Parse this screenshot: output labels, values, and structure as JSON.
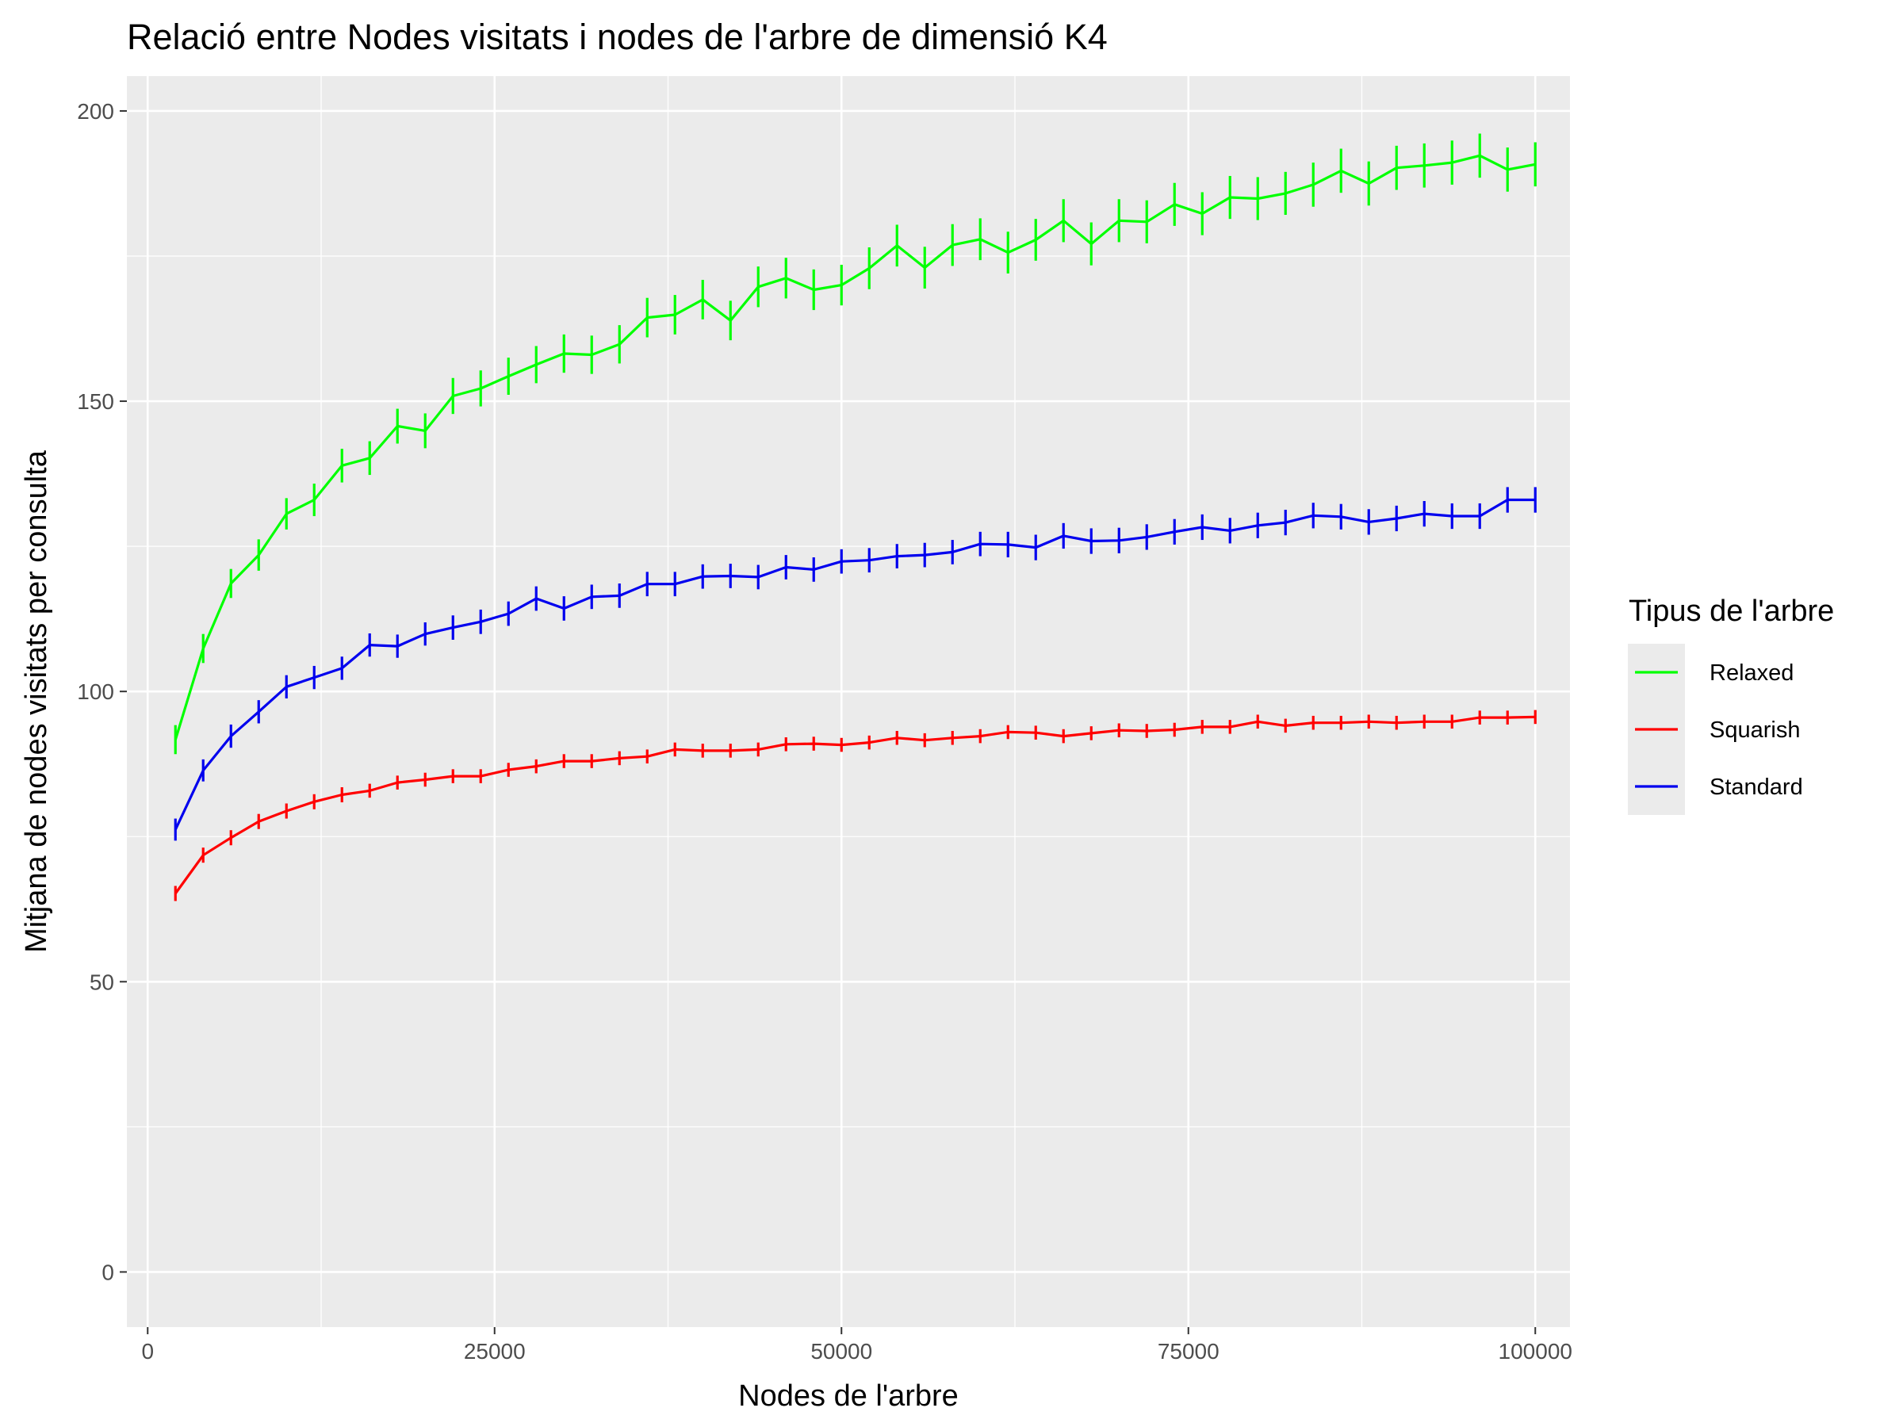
{
  "chart_data": {
    "type": "line",
    "title": "Relació entre Nodes visitats i nodes de l'arbre de dimensió K4",
    "xlabel": "Nodes de l'arbre",
    "ylabel": "Mitjana de nodes visitats per consulta",
    "xlim": [
      -1500,
      102500
    ],
    "ylim": [
      -9.5,
      206
    ],
    "x_ticks": [
      0,
      25000,
      50000,
      75000,
      100000
    ],
    "x_tick_labels": [
      "0",
      "25000",
      "50000",
      "75000",
      "100000"
    ],
    "y_ticks": [
      0,
      50,
      100,
      150,
      200
    ],
    "y_tick_labels": [
      "0",
      "50",
      "100",
      "150",
      "200"
    ],
    "grid": true,
    "legend": {
      "title": "Tipus de l'arbre",
      "position": "right"
    },
    "x": [
      2000,
      4000,
      6000,
      8000,
      10000,
      12000,
      14000,
      16000,
      18000,
      20000,
      22000,
      24000,
      26000,
      28000,
      30000,
      32000,
      34000,
      36000,
      38000,
      40000,
      42000,
      44000,
      46000,
      48000,
      50000,
      52000,
      54000,
      56000,
      58000,
      60000,
      62000,
      64000,
      66000,
      68000,
      70000,
      72000,
      74000,
      76000,
      78000,
      80000,
      82000,
      84000,
      86000,
      88000,
      90000,
      92000,
      94000,
      96000,
      98000,
      100000
    ],
    "series": [
      {
        "name": "Relaxed",
        "color": "#00ff00",
        "values": [
          91.7,
          107.4,
          118.6,
          123.5,
          130.6,
          133.0,
          138.9,
          140.2,
          145.7,
          144.9,
          150.9,
          152.2,
          154.3,
          156.3,
          158.2,
          158.0,
          159.8,
          164.4,
          164.9,
          167.5,
          163.9,
          169.7,
          171.2,
          169.2,
          170.0,
          172.9,
          176.8,
          173.0,
          176.9,
          177.9,
          175.6,
          177.8,
          181.1,
          177.1,
          181.1,
          180.9,
          183.9,
          182.3,
          185.1,
          184.9,
          185.8,
          187.3,
          189.7,
          187.5,
          190.2,
          190.6,
          191.1,
          192.3,
          189.9,
          190.8
        ],
        "errors": [
          2.5,
          2.5,
          2.5,
          2.7,
          2.7,
          2.8,
          2.9,
          2.9,
          3.0,
          3.0,
          3.1,
          3.1,
          3.2,
          3.2,
          3.3,
          3.3,
          3.3,
          3.4,
          3.4,
          3.4,
          3.4,
          3.5,
          3.5,
          3.5,
          3.5,
          3.6,
          3.6,
          3.6,
          3.6,
          3.6,
          3.6,
          3.6,
          3.7,
          3.7,
          3.7,
          3.7,
          3.7,
          3.7,
          3.7,
          3.7,
          3.7,
          3.8,
          3.8,
          3.8,
          3.8,
          3.8,
          3.8,
          3.8,
          3.8,
          3.8
        ]
      },
      {
        "name": "Squarish",
        "color": "#ff0000",
        "values": [
          65.2,
          71.8,
          74.8,
          77.6,
          79.4,
          81.0,
          82.2,
          82.9,
          84.3,
          84.8,
          85.4,
          85.4,
          86.5,
          87.1,
          88.0,
          88.0,
          88.5,
          88.8,
          90.0,
          89.8,
          89.8,
          90.0,
          90.9,
          91.0,
          90.8,
          91.2,
          92.0,
          91.6,
          92.0,
          92.3,
          93.0,
          92.9,
          92.3,
          92.8,
          93.3,
          93.2,
          93.4,
          93.9,
          93.9,
          94.8,
          94.1,
          94.6,
          94.6,
          94.8,
          94.6,
          94.8,
          94.8,
          95.5,
          95.5,
          95.6
        ],
        "errors": [
          1.3,
          1.3,
          1.3,
          1.3,
          1.3,
          1.3,
          1.3,
          1.2,
          1.2,
          1.2,
          1.2,
          1.2,
          1.2,
          1.2,
          1.2,
          1.2,
          1.2,
          1.2,
          1.2,
          1.2,
          1.2,
          1.2,
          1.2,
          1.2,
          1.2,
          1.2,
          1.2,
          1.2,
          1.2,
          1.2,
          1.2,
          1.2,
          1.2,
          1.2,
          1.2,
          1.2,
          1.2,
          1.2,
          1.2,
          1.2,
          1.2,
          1.2,
          1.2,
          1.2,
          1.2,
          1.2,
          1.2,
          1.2,
          1.2,
          1.2
        ]
      },
      {
        "name": "Standard",
        "color": "#0000ee",
        "values": [
          76.2,
          86.4,
          92.3,
          96.5,
          100.8,
          102.4,
          104.0,
          108.0,
          107.8,
          109.9,
          111.0,
          112.0,
          113.4,
          116.0,
          114.3,
          116.3,
          116.5,
          118.5,
          118.5,
          119.8,
          119.9,
          119.7,
          121.4,
          121.0,
          122.4,
          122.6,
          123.3,
          123.5,
          124.0,
          125.4,
          125.3,
          124.8,
          126.8,
          125.9,
          126.0,
          126.6,
          127.5,
          128.3,
          127.7,
          128.6,
          129.1,
          130.3,
          130.1,
          129.2,
          129.8,
          130.6,
          130.2,
          130.2,
          133.0,
          133.0
        ],
        "errors": [
          1.9,
          1.9,
          2.0,
          2.0,
          2.0,
          2.0,
          2.0,
          2.0,
          2.0,
          2.0,
          2.1,
          2.1,
          2.1,
          2.1,
          2.1,
          2.1,
          2.1,
          2.1,
          2.1,
          2.1,
          2.1,
          2.1,
          2.1,
          2.1,
          2.1,
          2.1,
          2.1,
          2.1,
          2.1,
          2.1,
          2.2,
          2.2,
          2.2,
          2.2,
          2.2,
          2.2,
          2.2,
          2.2,
          2.2,
          2.2,
          2.2,
          2.2,
          2.2,
          2.2,
          2.2,
          2.2,
          2.2,
          2.2,
          2.2,
          2.2
        ]
      }
    ]
  }
}
